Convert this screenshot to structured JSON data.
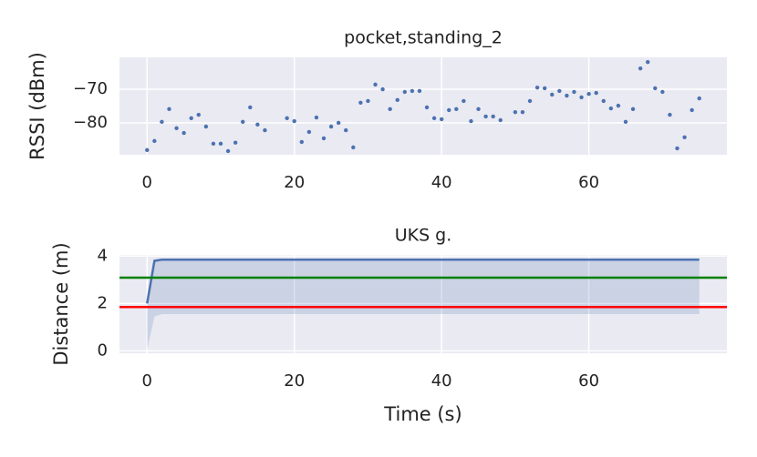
{
  "chart_data": [
    {
      "type": "scatter",
      "title": "pocket,standing_2",
      "ylabel": "RSSI (dBm)",
      "color": "#4c72b0",
      "x": [
        0,
        1,
        2,
        3,
        4,
        5,
        6,
        7,
        8,
        9,
        10,
        11,
        12,
        13,
        14,
        15,
        16,
        19,
        20,
        21,
        22,
        23,
        24,
        25,
        26,
        27,
        28,
        29,
        30,
        31,
        32,
        33,
        34,
        35,
        36,
        37,
        38,
        39,
        40,
        41,
        42,
        43,
        44,
        45,
        46,
        47,
        48,
        50,
        51,
        52,
        53,
        54,
        55,
        56,
        57,
        58,
        59,
        60,
        61,
        62,
        63,
        64,
        65,
        66,
        67,
        68,
        69,
        70,
        71,
        72,
        73,
        74,
        75
      ],
      "values": [
        -88.1,
        -85.4,
        -79.7,
        -75.9,
        -81.6,
        -83,
        -78.6,
        -77.6,
        -81.1,
        -86.2,
        -86.2,
        -88.4,
        -85.9,
        -79.7,
        -75.4,
        -80.5,
        -82.2,
        -78.6,
        -79.5,
        -85.7,
        -82.7,
        -78.4,
        -84.6,
        -81.1,
        -80,
        -82.2,
        -87.3,
        -74,
        -73.5,
        -68.6,
        -70,
        -75.9,
        -73.2,
        -70.8,
        -70.5,
        -70.5,
        -75.4,
        -78.6,
        -78.9,
        -76.2,
        -75.9,
        -73.5,
        -79.5,
        -75.9,
        -78.1,
        -78.1,
        -79.2,
        -76.8,
        -76.8,
        -73.5,
        -69.5,
        -69.7,
        -71.6,
        -70.5,
        -71.9,
        -70.8,
        -72.4,
        -71.4,
        -71.1,
        -73.5,
        -75.7,
        -74.9,
        -79.7,
        -75.9,
        -63.8,
        -61.9,
        -69.7,
        -70.8,
        -77.6,
        -87.6,
        -84.3,
        -76.2,
        -72.7
      ],
      "xlim": [
        -3.75,
        78.75
      ],
      "xticks": [
        0,
        20,
        40,
        60
      ],
      "ylim": [
        -89.5,
        -60.5
      ],
      "yticks": [
        {
          "value": -80,
          "label": "−80"
        },
        {
          "value": -70,
          "label": "−70"
        }
      ],
      "grid": true
    },
    {
      "type": "line",
      "title": "UKS g.",
      "xlabel": "Time (s)",
      "ylabel": "Distance (m)",
      "x": [
        0,
        1,
        2,
        3,
        4,
        5,
        6,
        7,
        8,
        9,
        10,
        11,
        12,
        13,
        14,
        15,
        16,
        17,
        18,
        19,
        20,
        21,
        22,
        23,
        24,
        25,
        26,
        27,
        28,
        29,
        30,
        31,
        32,
        33,
        34,
        35,
        36,
        37,
        38,
        39,
        40,
        41,
        42,
        43,
        44,
        45,
        46,
        47,
        48,
        49,
        50,
        51,
        52,
        53,
        54,
        55,
        56,
        57,
        58,
        59,
        60,
        61,
        62,
        63,
        64,
        65,
        66,
        67,
        68,
        69,
        70,
        71,
        72,
        73,
        74,
        75
      ],
      "series": [
        {
          "color": "#4c72b0",
          "values": [
            2.0,
            3.8,
            3.85,
            3.85,
            3.85,
            3.85,
            3.85,
            3.85,
            3.85,
            3.85,
            3.85,
            3.85,
            3.85,
            3.85,
            3.85,
            3.85,
            3.85,
            3.85,
            3.85,
            3.85,
            3.85,
            3.85,
            3.85,
            3.85,
            3.85,
            3.85,
            3.85,
            3.85,
            3.85,
            3.85,
            3.85,
            3.85,
            3.85,
            3.85,
            3.85,
            3.85,
            3.85,
            3.85,
            3.85,
            3.85,
            3.85,
            3.85,
            3.85,
            3.85,
            3.85,
            3.85,
            3.85,
            3.85,
            3.85,
            3.85,
            3.85,
            3.85,
            3.85,
            3.85,
            3.85,
            3.85,
            3.85,
            3.85,
            3.85,
            3.85,
            3.85,
            3.85,
            3.85,
            3.85,
            3.85,
            3.85,
            3.85,
            3.85,
            3.85,
            3.85,
            3.85,
            3.85,
            3.85,
            3.85,
            3.85,
            3.85
          ],
          "band_lower": [
            0.05,
            1.45,
            1.55,
            1.55,
            1.55,
            1.55,
            1.55,
            1.55,
            1.55,
            1.55,
            1.55,
            1.55,
            1.55,
            1.55,
            1.55,
            1.55,
            1.55,
            1.55,
            1.55,
            1.55,
            1.55,
            1.55,
            1.55,
            1.55,
            1.55,
            1.55,
            1.55,
            1.55,
            1.55,
            1.55,
            1.55,
            1.55,
            1.55,
            1.55,
            1.55,
            1.55,
            1.55,
            1.55,
            1.55,
            1.55,
            1.55,
            1.55,
            1.55,
            1.55,
            1.55,
            1.55,
            1.55,
            1.55,
            1.55,
            1.55,
            1.55,
            1.55,
            1.55,
            1.55,
            1.55,
            1.55,
            1.55,
            1.55,
            1.55,
            1.55,
            1.55,
            1.55,
            1.55,
            1.55,
            1.55,
            1.55,
            1.55,
            1.55,
            1.55,
            1.55,
            1.55,
            1.55,
            1.55,
            1.55,
            1.55,
            1.55
          ]
        }
      ],
      "hlines": [
        {
          "value": 3.09,
          "color": "#008000"
        },
        {
          "value": 1.85,
          "color": "#ff0000"
        }
      ],
      "xlim": [
        -3.75,
        78.75
      ],
      "xticks": [
        0,
        20,
        40,
        60
      ],
      "ylim": [
        -0.1,
        4.05
      ],
      "yticks": [
        0,
        2,
        4
      ],
      "grid": true
    }
  ]
}
